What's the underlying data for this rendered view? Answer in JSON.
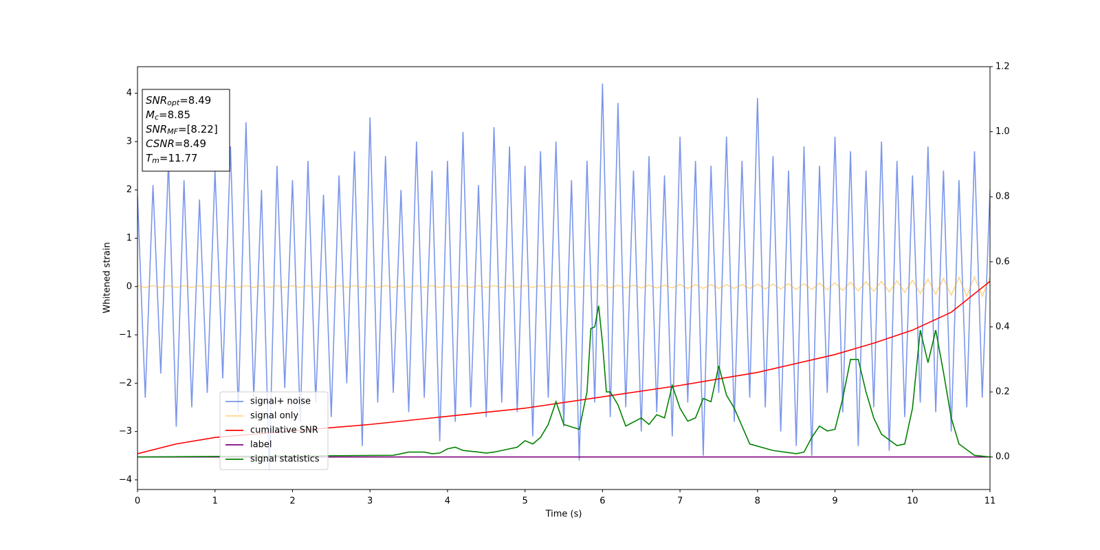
{
  "chart_data": {
    "type": "line",
    "xlabel": "Time (s)",
    "ylabel": "Whitened strain",
    "xlim": [
      0,
      11
    ],
    "ylim": [
      -4.2,
      4.55
    ],
    "y2lim": [
      -0.1,
      1.2
    ],
    "xticks": [
      0,
      1,
      2,
      3,
      4,
      5,
      6,
      7,
      8,
      9,
      10,
      11
    ],
    "yticks": [
      {
        "value": -4,
        "label": "−4"
      },
      {
        "value": -3,
        "label": "−3"
      },
      {
        "value": -2,
        "label": "−2"
      },
      {
        "value": -1,
        "label": "−1"
      },
      0,
      1,
      2,
      3,
      4
    ],
    "y2ticks": [
      {
        "value": 0,
        "label": "0.0"
      },
      0.2,
      0.4,
      0.6,
      0.8,
      {
        "value": 1,
        "label": "1.0"
      },
      1.2
    ],
    "x": [
      0,
      0.1,
      0.2,
      0.3,
      0.4,
      0.5,
      0.6,
      0.7,
      0.8,
      0.9,
      1,
      1.1,
      1.2,
      1.3,
      1.4,
      1.5,
      1.6,
      1.7,
      1.8,
      1.9,
      2,
      2.1,
      2.2,
      2.3,
      2.4,
      2.5,
      2.6,
      2.7,
      2.8,
      2.9,
      3,
      3.1,
      3.2,
      3.3,
      3.4,
      3.5,
      3.6,
      3.7,
      3.8,
      3.9,
      4,
      4.1,
      4.2,
      4.3,
      4.4,
      4.5,
      4.6,
      4.7,
      4.8,
      4.9,
      5,
      5.1,
      5.2,
      5.3,
      5.4,
      5.5,
      5.6,
      5.7,
      5.8,
      5.9,
      6,
      6.1,
      6.2,
      6.3,
      6.4,
      6.5,
      6.6,
      6.7,
      6.8,
      6.9,
      7,
      7.1,
      7.2,
      7.3,
      7.4,
      7.5,
      7.6,
      7.7,
      7.8,
      7.9,
      8,
      8.1,
      8.2,
      8.3,
      8.4,
      8.5,
      8.6,
      8.7,
      8.8,
      8.9,
      9,
      9.1,
      9.2,
      9.3,
      9.4,
      9.5,
      9.6,
      9.7,
      9.8,
      9.9,
      10,
      10.1,
      10.2,
      10.3,
      10.4,
      10.5,
      10.6,
      10.7,
      10.8,
      10.9,
      11
    ],
    "series": [
      {
        "name": "signal+ noise",
        "color": "#4169e1",
        "alpha": 0.7,
        "values": [
          1.9,
          -2.3,
          2.1,
          -1.8,
          2.6,
          -2.9,
          2.2,
          -2.5,
          1.8,
          -2.2,
          2.4,
          -1.9,
          2.9,
          -2.6,
          3.4,
          -2.3,
          2.0,
          -3.8,
          2.5,
          -2.1,
          2.2,
          -2.8,
          2.6,
          -2.4,
          1.9,
          -2.7,
          2.3,
          -2.0,
          2.8,
          -3.3,
          3.5,
          -2.4,
          2.7,
          -2.2,
          2.0,
          -2.6,
          3.0,
          -2.3,
          2.4,
          -3.2,
          2.6,
          -2.8,
          3.2,
          -2.5,
          2.1,
          -2.7,
          3.3,
          -2.4,
          2.9,
          -2.6,
          2.5,
          -3.1,
          2.8,
          -2.3,
          3.0,
          -2.9,
          2.2,
          -3.6,
          2.6,
          -2.4,
          4.2,
          -2.7,
          3.8,
          -2.5,
          2.4,
          -3.0,
          2.7,
          -2.6,
          2.3,
          -3.1,
          3.1,
          -2.4,
          2.6,
          -3.5,
          2.5,
          -2.2,
          3.1,
          -2.8,
          2.6,
          -2.3,
          3.9,
          -2.5,
          2.7,
          -3.0,
          2.4,
          -3.3,
          2.9,
          -3.5,
          2.5,
          -2.2,
          3.1,
          -2.6,
          2.8,
          -3.3,
          2.4,
          -2.5,
          3.0,
          -3.4,
          2.6,
          -2.7,
          2.3,
          -2.4,
          2.9,
          -2.6,
          2.4,
          -3.0,
          2.2,
          -2.5,
          2.8,
          -2.3,
          2.0
        ]
      },
      {
        "name": "signal only",
        "color": "orange",
        "alpha": 0.45,
        "values": [
          0.02,
          -0.02,
          0.02,
          -0.02,
          0.02,
          -0.02,
          0.02,
          -0.02,
          0.02,
          -0.02,
          0.02,
          -0.02,
          0.02,
          -0.02,
          0.02,
          -0.02,
          0.02,
          -0.02,
          0.02,
          -0.02,
          0.02,
          -0.02,
          0.02,
          -0.02,
          0.02,
          -0.02,
          0.02,
          -0.02,
          0.02,
          -0.02,
          0.02,
          -0.02,
          0.02,
          -0.02,
          0.02,
          -0.02,
          0.02,
          -0.02,
          0.02,
          -0.02,
          0.02,
          -0.02,
          0.02,
          -0.02,
          0.02,
          -0.02,
          0.02,
          -0.02,
          0.02,
          -0.02,
          0.02,
          -0.02,
          0.02,
          -0.02,
          0.02,
          -0.02,
          0.02,
          -0.02,
          0.02,
          -0.02,
          0.03,
          -0.03,
          0.03,
          -0.03,
          0.03,
          -0.03,
          0.03,
          -0.03,
          0.03,
          -0.03,
          0.04,
          -0.04,
          0.04,
          -0.04,
          0.04,
          -0.04,
          0.04,
          -0.04,
          0.04,
          -0.04,
          0.05,
          -0.05,
          0.05,
          -0.05,
          0.06,
          -0.06,
          0.06,
          -0.06,
          0.07,
          -0.07,
          0.08,
          -0.08,
          0.09,
          -0.09,
          0.1,
          -0.1,
          0.11,
          -0.11,
          0.12,
          -0.12,
          0.13,
          -0.14,
          0.15,
          -0.16,
          0.17,
          -0.18,
          0.19,
          -0.2,
          0.2,
          -0.2,
          0.2
        ]
      },
      {
        "name": "cumilative SNR",
        "color": "red",
        "axis": "y2",
        "x": [
          0,
          0.5,
          1,
          2,
          3,
          4,
          5,
          6,
          7,
          8,
          9,
          9.5,
          10,
          10.5,
          11
        ],
        "values": [
          0.01,
          0.04,
          0.06,
          0.08,
          0.1,
          0.125,
          0.15,
          0.185,
          0.22,
          0.26,
          0.315,
          0.35,
          0.39,
          0.445,
          0.54
        ]
      },
      {
        "name": "label",
        "color": "purple",
        "axis": "y2",
        "x": [
          0,
          11
        ],
        "values": [
          0,
          0
        ]
      },
      {
        "name": "signal statistics",
        "color": "green",
        "axis": "y2",
        "x": [
          0,
          3.3,
          3.5,
          3.7,
          3.8,
          3.9,
          4.0,
          4.1,
          4.2,
          4.4,
          4.5,
          4.6,
          4.7,
          4.9,
          5.0,
          5.1,
          5.2,
          5.3,
          5.4,
          5.5,
          5.7,
          5.8,
          5.85,
          5.9,
          5.95,
          6.0,
          6.05,
          6.1,
          6.2,
          6.3,
          6.5,
          6.6,
          6.7,
          6.8,
          6.9,
          7.0,
          7.1,
          7.2,
          7.3,
          7.4,
          7.5,
          7.6,
          7.7,
          7.9,
          8.2,
          8.5,
          8.6,
          8.7,
          8.8,
          8.9,
          9.0,
          9.1,
          9.2,
          9.3,
          9.4,
          9.5,
          9.6,
          9.8,
          9.9,
          10.0,
          10.1,
          10.2,
          10.3,
          10.4,
          10.5,
          10.6,
          10.8,
          11
        ],
        "values": [
          0,
          0.005,
          0.015,
          0.015,
          0.01,
          0.012,
          0.025,
          0.03,
          0.02,
          0.015,
          0.012,
          0.015,
          0.02,
          0.03,
          0.05,
          0.04,
          0.06,
          0.1,
          0.17,
          0.1,
          0.085,
          0.2,
          0.395,
          0.4,
          0.465,
          0.35,
          0.2,
          0.2,
          0.16,
          0.095,
          0.12,
          0.1,
          0.13,
          0.12,
          0.22,
          0.15,
          0.11,
          0.12,
          0.18,
          0.17,
          0.28,
          0.19,
          0.15,
          0.04,
          0.02,
          0.01,
          0.015,
          0.06,
          0.095,
          0.08,
          0.085,
          0.18,
          0.3,
          0.3,
          0.2,
          0.12,
          0.07,
          0.035,
          0.04,
          0.15,
          0.39,
          0.29,
          0.39,
          0.26,
          0.12,
          0.04,
          0.005,
          0
        ]
      }
    ],
    "annotation": [
      {
        "name": "SNR",
        "sub": "opt",
        "text": "=8.49"
      },
      {
        "name": "M",
        "sub": "c",
        "text": "=8.85"
      },
      {
        "name": "SNR",
        "sub": "MF",
        "text": "=[8.22]"
      },
      {
        "name": "CSNR",
        "text": "=8.49"
      },
      {
        "name": "T",
        "sub": "m",
        "text": "=11.77"
      }
    ]
  }
}
